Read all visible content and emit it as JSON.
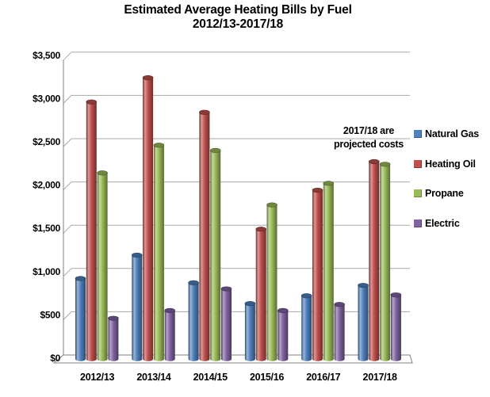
{
  "title": {
    "line1": "Estimated Average Heating Bills by Fuel",
    "line2": "2012/13-2017/18"
  },
  "annotation": {
    "line1": "2017/18 are",
    "line2": "projected costs"
  },
  "chart_data": {
    "type": "bar",
    "subtype": "3d-cylinder",
    "title": "Estimated Average Heating Bills by Fuel 2012/13-2017/18",
    "categories": [
      "2012/13",
      "2013/14",
      "2014/15",
      "2015/16",
      "2016/17",
      "2017/18"
    ],
    "series": [
      {
        "name": "Natural Gas",
        "color": "#4F81BD",
        "values": [
          930,
          1200,
          880,
          640,
          730,
          850
        ]
      },
      {
        "name": "Heating Oil",
        "color": "#C0504D",
        "values": [
          2970,
          3250,
          2850,
          1500,
          1950,
          2280
        ]
      },
      {
        "name": "Propane",
        "color": "#9BBB59",
        "values": [
          2150,
          2470,
          2410,
          1780,
          2030,
          2250
        ]
      },
      {
        "name": "Electric",
        "color": "#8064A2",
        "values": [
          470,
          560,
          810,
          560,
          630,
          740
        ]
      }
    ],
    "xlabel": "",
    "ylabel": "",
    "ylim": [
      0,
      3500
    ],
    "ytick_step": 500,
    "ytick_labels": [
      "$0",
      "$500",
      "$1,000",
      "$1,500",
      "$2,000",
      "$2,500",
      "$3,000",
      "$3,500"
    ],
    "grid": true,
    "gridline_color": "#A8A8A8",
    "axis_color": "#7F7F7F",
    "legend_position": "right",
    "annotation": "2017/18 are projected costs"
  }
}
